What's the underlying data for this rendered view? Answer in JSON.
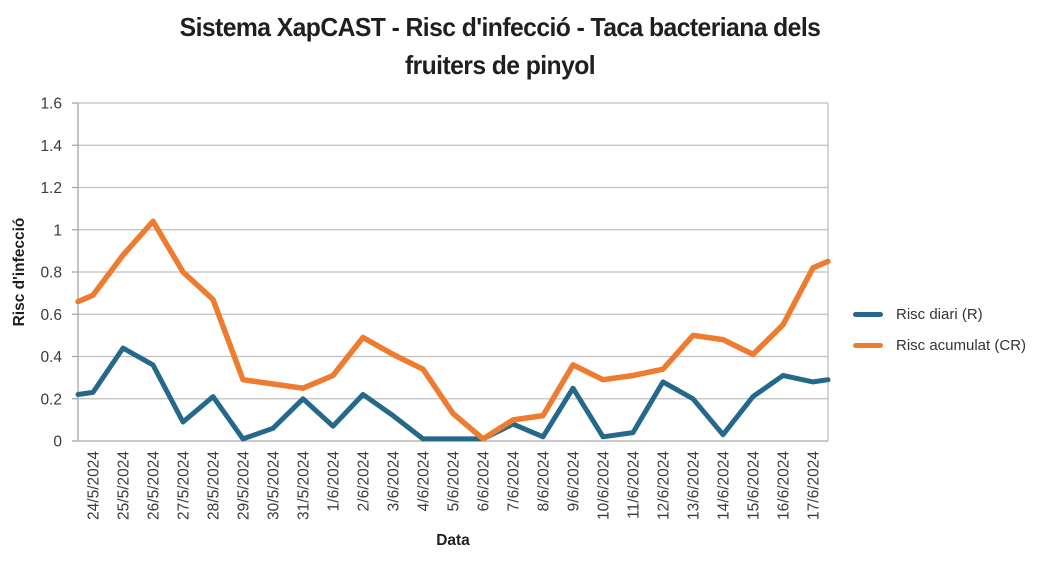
{
  "title": {
    "line1": "Sistema XapCAST - Risc d'infecció - Taca bacteriana dels",
    "line2": "fruiters de pinyol"
  },
  "chart_data": {
    "type": "line",
    "title": "Sistema XapCAST - Risc d'infecció - Taca bacteriana dels fruiters de pinyol",
    "xlabel": "Data",
    "ylabel": "Risc d'infecció",
    "ylim": [
      0,
      1.6
    ],
    "ytick_interval": 0.2,
    "ytick_labels": [
      "0",
      "0.2",
      "0.4",
      "0.6",
      "0.8",
      "1",
      "1.2",
      "1.4",
      "1.6"
    ],
    "grid": true,
    "legend_position": "right",
    "categories": [
      "24/5/2024",
      "25/5/2024",
      "26/5/2024",
      "27/5/2024",
      "28/5/2024",
      "29/5/2024",
      "30/5/2024",
      "31/5/2024",
      "1/6/2024",
      "2/6/2024",
      "3/6/2024",
      "4/6/2024",
      "5/6/2024",
      "6/6/2024",
      "7/6/2024",
      "8/6/2024",
      "9/6/2024",
      "10/6/2024",
      "11/6/2024",
      "12/6/2024",
      "13/6/2024",
      "14/6/2024",
      "15/6/2024",
      "16/6/2024",
      "17/6/2024"
    ],
    "series": [
      {
        "name": "Risc diari (R)",
        "color": "#25698A",
        "values": [
          0.23,
          0.44,
          0.36,
          0.09,
          0.21,
          0.01,
          0.06,
          0.2,
          0.07,
          0.22,
          0.12,
          0.01,
          0.01,
          0.01,
          0.08,
          0.02,
          0.25,
          0.02,
          0.04,
          0.28,
          0.2,
          0.03,
          0.21,
          0.31,
          0.28
        ],
        "edge_start": 0.22,
        "edge_end": 0.29
      },
      {
        "name": "Risc acumulat (CR)",
        "color": "#EE7C30",
        "values": [
          0.69,
          0.88,
          1.04,
          0.8,
          0.67,
          0.29,
          0.27,
          0.25,
          0.31,
          0.49,
          0.41,
          0.34,
          0.13,
          0.01,
          0.1,
          0.12,
          0.36,
          0.29,
          0.31,
          0.34,
          0.5,
          0.48,
          0.41,
          0.55,
          0.82
        ],
        "edge_start": 0.66,
        "edge_end": 0.85
      }
    ]
  },
  "colors": {
    "grid": "#BFBFBF",
    "axis": "#A6A6A6",
    "tick_text": "#3A3A3A",
    "title_text": "#1F1F1F"
  }
}
